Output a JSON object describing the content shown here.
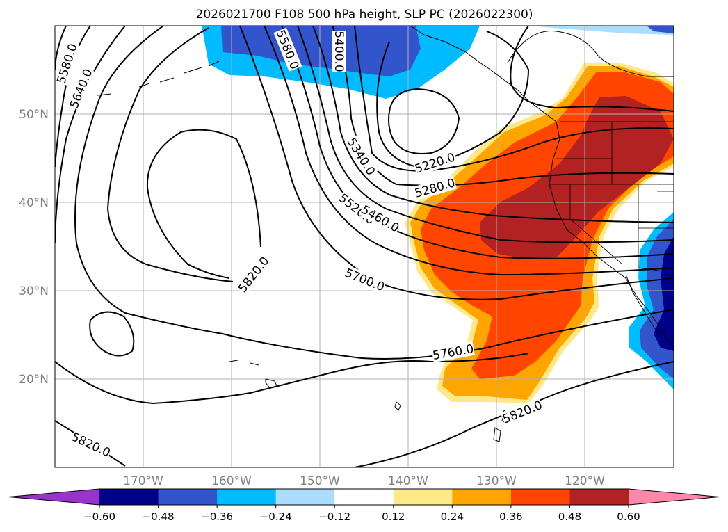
{
  "chart_data": {
    "type": "contour_map",
    "title": "2026021700 F108 500 hPa height, SLP PC (2026022300)",
    "map": {
      "lon_range": [
        180,
        110
      ],
      "lat_range": [
        10,
        60
      ],
      "lon_ticks": [
        {
          "value": 170,
          "label": "170°W"
        },
        {
          "value": 160,
          "label": "160°W"
        },
        {
          "value": 150,
          "label": "150°W"
        },
        {
          "value": 140,
          "label": "140°W"
        },
        {
          "value": 130,
          "label": "130°W"
        },
        {
          "value": 120,
          "label": "120°W"
        }
      ],
      "lat_ticks": [
        {
          "value": 50,
          "label": "50°N"
        },
        {
          "value": 40,
          "label": "40°N"
        },
        {
          "value": 30,
          "label": "30°N"
        },
        {
          "value": 20,
          "label": "20°N"
        }
      ],
      "gridlines": true
    },
    "contour_labels": [
      "5580.0",
      "5640.0",
      "5580.0",
      "5400.0",
      "5340.0",
      "5220.0",
      "5280.0",
      "5520.0",
      "5460.0",
      "5820.0",
      "5700.0",
      "5760.0",
      "5820.0",
      "5820.0"
    ],
    "fill_field": "SLP PC",
    "colorbar": {
      "levels": [
        -0.72,
        -0.6,
        -0.48,
        -0.36,
        -0.24,
        -0.12,
        0.12,
        0.24,
        0.36,
        0.48,
        0.6,
        0.72
      ],
      "tick_labels": [
        "−0.60",
        "−0.48",
        "−0.36",
        "−0.24",
        "−0.12",
        "0.12",
        "0.24",
        "0.36",
        "0.48",
        "0.60"
      ],
      "colors": [
        "#9933cc",
        "#000088",
        "#3355cc",
        "#00bbff",
        "#aaddff",
        "#ffffff",
        "#ffe88a",
        "#ffa500",
        "#ff4500",
        "#b22222",
        "#ff88aa"
      ],
      "extend": "both"
    }
  }
}
